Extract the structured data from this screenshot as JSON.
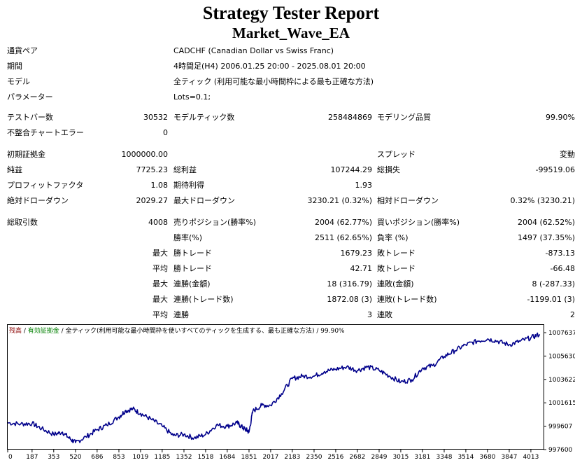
{
  "report": {
    "title": "Strategy Tester Report",
    "ea_name": "Market_Wave_EA"
  },
  "header": {
    "symbol_label": "通貨ペア",
    "symbol_value": "CADCHF (Canadian Dollar vs Swiss Franc)",
    "period_label": "期間",
    "period_value": "4時間足(H4) 2006.01.25 20:00 - 2025.08.01 20:00",
    "model_label": "モデル",
    "model_value": "全ティック (利用可能な最小時間枠による最も正確な方法)",
    "params_label": "パラメーター",
    "params_value": "Lots=0.1;"
  },
  "stats": {
    "bars_label": "テストバー数",
    "bars_value": "30532",
    "ticks_label": "モデルティック数",
    "ticks_value": "258484869",
    "quality_label": "モデリング品質",
    "quality_value": "99.90%",
    "mismatch_label": "不整合チャートエラー",
    "mismatch_value": "0",
    "deposit_label": "初期証拠金",
    "deposit_value": "1000000.00",
    "spread_label": "スプレッド",
    "spread_value": "変動",
    "net_label": "純益",
    "net_value": "7725.23",
    "gross_profit_label": "総利益",
    "gross_profit_value": "107244.29",
    "gross_loss_label": "総損失",
    "gross_loss_value": "-99519.06",
    "pf_label": "プロフィットファクタ",
    "pf_value": "1.08",
    "payoff_label": "期待利得",
    "payoff_value": "1.93",
    "abs_dd_label": "絶対ドローダウン",
    "abs_dd_value": "2029.27",
    "max_dd_label": "最大ドローダウン",
    "max_dd_value": "3230.21 (0.32%)",
    "rel_dd_label": "相対ドローダウン",
    "rel_dd_value": "0.32% (3230.21)",
    "total_trades_label": "総取引数",
    "total_trades_value": "4008",
    "short_label": "売りポジション(勝率%)",
    "short_value": "2004 (62.77%)",
    "long_label": "買いポジション(勝率%)",
    "long_value": "2004 (62.52%)",
    "win_pct_label": "勝率(%)",
    "win_pct_value": "2511 (62.65%)",
    "loss_pct_label": "負率 (%)",
    "loss_pct_value": "1497 (37.35%)",
    "max_prefix": "最大",
    "avg_prefix": "平均",
    "largest_win_label": "勝トレード",
    "largest_win_value": "1679.23",
    "largest_loss_label": "敗トレード",
    "largest_loss_value": "-873.13",
    "avg_win_label": "勝トレード",
    "avg_win_value": "42.71",
    "avg_loss_label": "敗トレード",
    "avg_loss_value": "-66.48",
    "max_cons_wins_label": "連勝(金額)",
    "max_cons_wins_value": "18 (316.79)",
    "max_cons_losses_label": "連敗(金額)",
    "max_cons_losses_value": "8 (-287.33)",
    "max_cons_profit_label": "連勝(トレード数)",
    "max_cons_profit_value": "1872.08 (3)",
    "max_cons_loss_label": "連敗(トレード数)",
    "max_cons_loss_value": "-1199.01 (3)",
    "avg_cons_wins_label": "連勝",
    "avg_cons_wins_value": "3",
    "avg_cons_losses_label": "連敗",
    "avg_cons_losses_value": "2"
  },
  "chart_data": {
    "type": "line",
    "legend": {
      "balance": "残高",
      "sep1": " / ",
      "equity": "有効証拠金",
      "sep2": " / ",
      "model": "全ティック(利用可能な最小時間枠を使いすべてのティックを生成する、最も正確な方法)",
      "sep3": " / ",
      "quality": "99.90%"
    },
    "colors": {
      "line": "#00008b",
      "equity_legend": "#008000",
      "balance_legend": "#8b0000"
    },
    "xlim": [
      0,
      4110
    ],
    "ylim": [
      997600,
      1008300
    ],
    "x_ticks": [
      0,
      187,
      353,
      520,
      686,
      853,
      1019,
      1185,
      1352,
      1518,
      1684,
      1851,
      2017,
      2183,
      2350,
      2516,
      2682,
      2849,
      3015,
      3181,
      3348,
      3514,
      3680,
      3847,
      4013
    ],
    "y_ticks": [
      997600,
      999607,
      1001615,
      1003622,
      1005630,
      1007637
    ],
    "x": [
      0,
      100,
      187,
      260,
      353,
      420,
      480,
      520,
      600,
      686,
      760,
      853,
      900,
      960,
      1019,
      1100,
      1185,
      1270,
      1352,
      1430,
      1518,
      1600,
      1684,
      1760,
      1800,
      1830,
      1851,
      1880,
      1950,
      2017,
      2100,
      2183,
      2260,
      2350,
      2430,
      2516,
      2600,
      2682,
      2760,
      2849,
      2930,
      3015,
      3100,
      3181,
      3260,
      3348,
      3430,
      3514,
      3600,
      3680,
      3760,
      3847,
      3930,
      4013,
      4080
    ],
    "y": [
      999900,
      999800,
      999850,
      999400,
      998900,
      999100,
      998500,
      998200,
      998700,
      999300,
      999700,
      1000400,
      1000900,
      1001100,
      1000700,
      1000200,
      999600,
      998800,
      998900,
      998600,
      998900,
      999700,
      999600,
      999900,
      999500,
      999300,
      999100,
      1000900,
      1001400,
      1001400,
      1002400,
      1003700,
      1003900,
      1003900,
      1004300,
      1004500,
      1004700,
      1004400,
      1004700,
      1004400,
      1003900,
      1003400,
      1003600,
      1004600,
      1004800,
      1005600,
      1006100,
      1006600,
      1006900,
      1007100,
      1006900,
      1006600,
      1006900,
      1007200,
      1007500
    ]
  }
}
